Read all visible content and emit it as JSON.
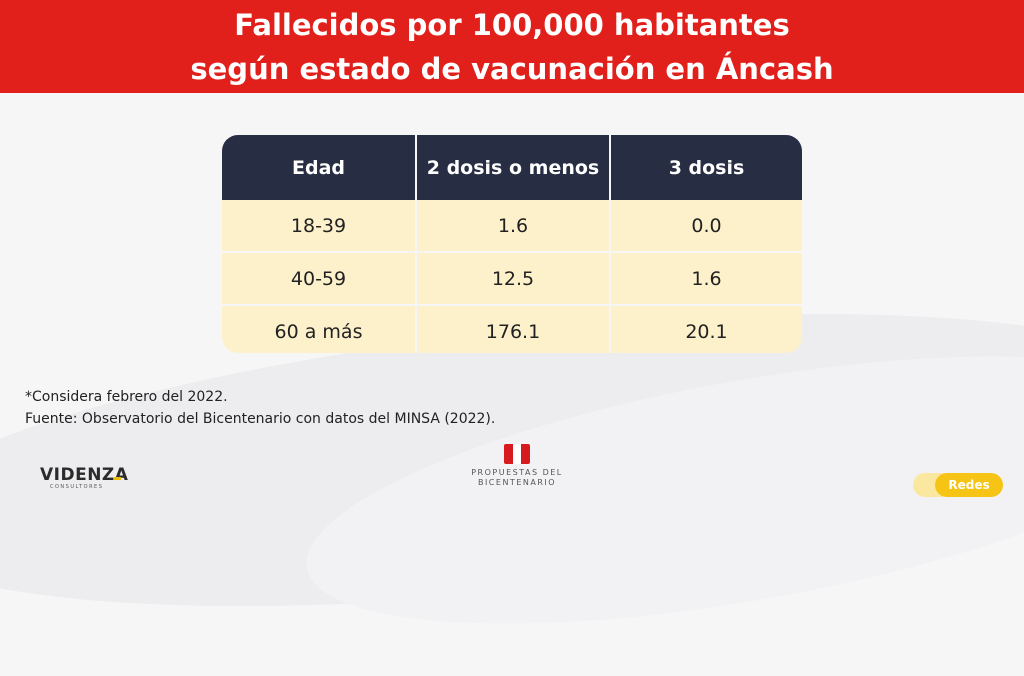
{
  "header": {
    "title_line1": "Fallecidos por 100,000 habitantes",
    "title_line2": "según estado de vacunación en Áncash"
  },
  "table": {
    "columns": [
      "Edad",
      "2 dosis o menos",
      "3 dosis"
    ],
    "rows": [
      [
        "18-39",
        "1.6",
        "0.0"
      ],
      [
        "40-59",
        "12.5",
        "1.6"
      ],
      [
        "60 a más",
        "176.1",
        "20.1"
      ]
    ]
  },
  "notes": {
    "line1": "*Considera febrero del 2022.",
    "line2": "Fuente: Observatorio del Bicentenario con datos del MINSA (2022)."
  },
  "logos": {
    "videnza": "VIDENZA",
    "videnza_sub": "CONSULTORES",
    "center_line1": "PROPUESTAS DEL",
    "center_line2": "BICENTENARIO",
    "redes": "Redes"
  },
  "colors": {
    "header": "#e1201c",
    "table_header": "#272d42",
    "table_row": "#fdf1cc",
    "accent_yellow": "#f6c415"
  }
}
